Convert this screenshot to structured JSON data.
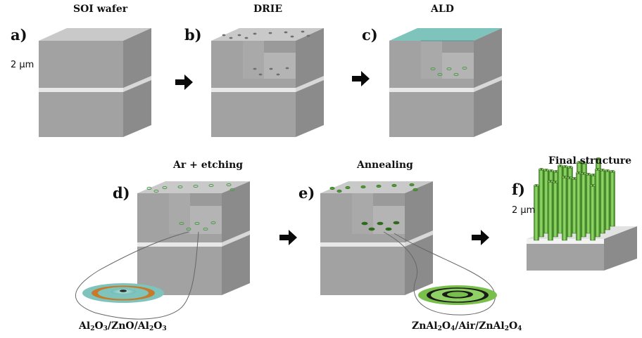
{
  "panels": {
    "a": {
      "letter": "a)",
      "title": "SOI wafer",
      "scale": "2 μm"
    },
    "b": {
      "letter": "b)",
      "title": "DRIE"
    },
    "c": {
      "letter": "c)",
      "title": "ALD"
    },
    "d": {
      "letter": "d)",
      "title": "Ar + etching"
    },
    "e": {
      "letter": "e)",
      "title": "Annealing"
    },
    "f": {
      "letter": "f)",
      "title": "Final structure",
      "scale": "2 μm"
    }
  },
  "insets": {
    "d_layers": [
      {
        "t": "Al"
      },
      {
        "s": "2"
      },
      {
        "t": "O"
      },
      {
        "s": "3"
      },
      {
        "t": "/ZnO/Al"
      },
      {
        "s": "2"
      },
      {
        "t": "O"
      },
      {
        "s": "3"
      }
    ],
    "e_layers": [
      {
        "t": "ZnAl"
      },
      {
        "s": "2"
      },
      {
        "t": "O"
      },
      {
        "s": "4"
      },
      {
        "t": "/Air/ZnAl"
      },
      {
        "s": "2"
      },
      {
        "t": "O"
      },
      {
        "s": "4"
      }
    ]
  },
  "colors": {
    "block_top": "#c8c8c8",
    "block_front": "#a3a3a3",
    "block_side": "#8c8c8c",
    "oxide_band": "#e6e6e6",
    "ald_coat": "#7ec4bd",
    "zno_orange": "#c77a2a",
    "spinel_green": "#79bf4c",
    "arrow": "#0a0a0a"
  },
  "icons": [
    "right-arrow-icon",
    "right-arrow-icon",
    "right-arrow-icon",
    "right-arrow-icon"
  ]
}
